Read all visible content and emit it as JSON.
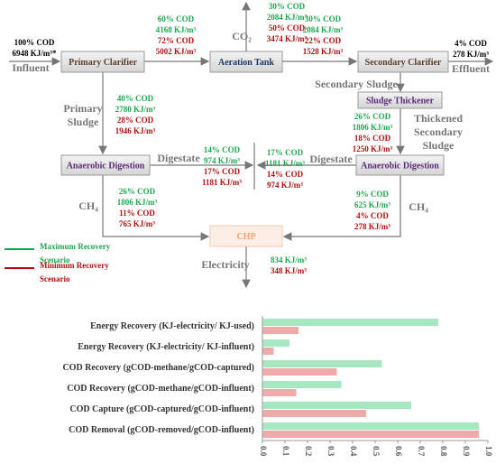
{
  "diagram": {
    "influent": {
      "label": "Influent",
      "cod": "100% COD",
      "energy": "6948 KJ/m³*"
    },
    "effluent": {
      "label": "Effluent",
      "cod": "4% COD",
      "energy": "278 KJ/m³"
    },
    "nodes": [
      "Primary Clarifier",
      "Aeration Tank",
      "Secondary Clarifier",
      "Sludge Thickener",
      "Anaerobic Digestion",
      "Anaerobic Digestion",
      "CHP"
    ],
    "streams": [
      "CO₂",
      "Primary Sludge",
      "Secondary Sludge",
      "Thickened Secondary Sludge",
      "Digestate",
      "Digestate",
      "CH₄",
      "CH₄",
      "Electricity"
    ],
    "flows": [
      {
        "max": [
          "60% COD",
          "4168 KJ/m³"
        ],
        "min": [
          "72% COD",
          "5002 KJ/m³"
        ]
      },
      {
        "max": [
          "30% COD",
          "2084 KJ/m³"
        ],
        "min": [
          "50% COD",
          "3474 KJ/m³"
        ]
      },
      {
        "max": [
          "30% COD",
          "2084 KJ/m³"
        ],
        "min": [
          "22% COD",
          "1528 KJ/m³"
        ]
      },
      {
        "max": [
          "40% COD",
          "2780 KJ/m³"
        ],
        "min": [
          "28% COD",
          "1946 KJ/m³"
        ]
      },
      {
        "max": [
          "26% COD",
          "1806 KJ/m³"
        ],
        "min": [
          "18% COD",
          "1250 KJ/m³"
        ]
      },
      {
        "max": [
          "14% COD",
          "974 KJ/m³"
        ],
        "min": [
          "17% COD",
          "1181 KJ/m³"
        ]
      },
      {
        "max": [
          "17% COD",
          "1181 KJ/m³"
        ],
        "min": [
          "14% COD",
          "974 KJ/m³"
        ]
      },
      {
        "max": [
          "26% COD",
          "1806 KJ/m³"
        ],
        "min": [
          "11% COD",
          "765 KJ/m³"
        ]
      },
      {
        "max": [
          "9% COD",
          "625 KJ/m³"
        ],
        "min": [
          "4% COD",
          "278 KJ/m³"
        ]
      },
      {
        "max": [
          "834 KJ/m³"
        ],
        "min": [
          "348 KJ/m³"
        ]
      }
    ]
  },
  "chart_data": {
    "type": "hbar",
    "categories": [
      "Energy Recovery (KJ-electricity/ KJ-used)",
      "Energy Recovery (KJ-electricity/ KJ-influent)",
      "COD Recovery (gCOD-methane/gCOD-captured)",
      "COD Recovery (gCOD-methane/gCOD-influent)",
      "COD Capture (gCOD-captured/gCOD-influent)",
      "COD Removal (gCOD-removed/gCOD-influent)"
    ],
    "series": [
      {
        "name": "Maximum Recovery Scenario",
        "color": "#a6e8c2",
        "values": [
          0.78,
          0.12,
          0.53,
          0.35,
          0.66,
          0.96
        ]
      },
      {
        "name": "Minimum Recovery Scenario",
        "color": "#f1aaaa",
        "values": [
          0.16,
          0.05,
          0.33,
          0.15,
          0.46,
          0.96
        ]
      }
    ],
    "xlim": [
      0,
      1
    ],
    "xticks": [
      {
        "value": 0,
        "label": "0.0"
      },
      0.1,
      0.2,
      0.3,
      0.4,
      0.5,
      0.6,
      0.7,
      0.8,
      0.9,
      {
        "value": 1,
        "label": "1.0"
      }
    ],
    "grid": false
  }
}
